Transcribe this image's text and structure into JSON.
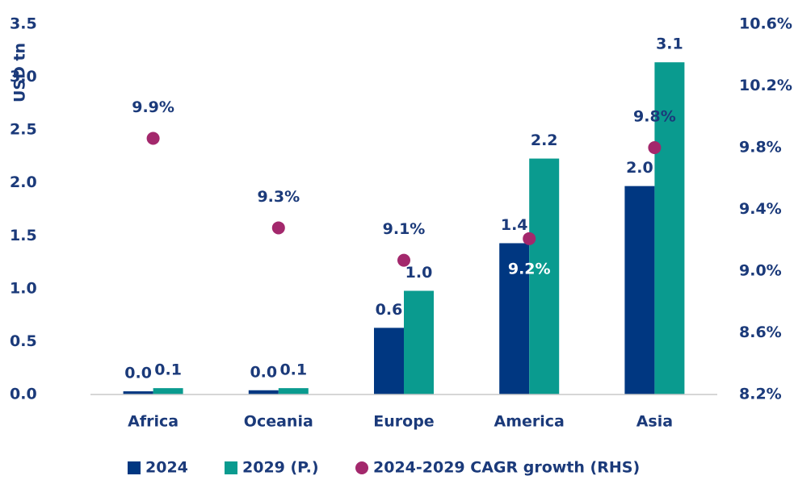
{
  "chart_data": {
    "type": "bar",
    "y_label": "USD tn",
    "categories": [
      "Africa",
      "Oceania",
      "Europe",
      "America",
      "Asia"
    ],
    "series": [
      {
        "name": "2024",
        "type": "bar",
        "color": "#003781",
        "values": [
          0.03,
          0.04,
          0.63,
          1.43,
          1.97
        ],
        "value_labels": [
          "0.0",
          "0.0",
          "0.6",
          "1.4",
          "2.0"
        ]
      },
      {
        "name": "2029 (P.)",
        "type": "bar",
        "color": "#0a9b8f",
        "values": [
          0.06,
          0.06,
          0.98,
          2.23,
          3.14
        ],
        "value_labels": [
          "0.1",
          "0.1",
          "1.0",
          "2.2",
          "3.1"
        ]
      },
      {
        "name": "2024-2029 CAGR growth (RHS)",
        "type": "scatter",
        "axis": "y2",
        "color": "#a3286c",
        "values": [
          9.86,
          9.28,
          9.07,
          9.21,
          9.8
        ],
        "value_labels": [
          "9.9%",
          "9.3%",
          "9.1%",
          "9.2%",
          "9.8%"
        ]
      }
    ],
    "ylim": [
      0,
      3.5
    ],
    "yticks": [
      {
        "value": 0,
        "label": "0.0"
      },
      0.5,
      {
        "value": 1,
        "label": "1.0"
      },
      1.5,
      {
        "value": 2,
        "label": "2.0"
      },
      2.5,
      {
        "value": 3,
        "label": "3.0"
      },
      3.5
    ],
    "y2lim": [
      8.2,
      10.6
    ],
    "y2ticks": [
      {
        "value": 8.2,
        "label": "8.2%"
      },
      {
        "value": 8.6,
        "label": "8.6%"
      },
      {
        "value": 9.0,
        "label": "9.0%"
      },
      {
        "value": 9.4,
        "label": "9.4%"
      },
      {
        "value": 9.8,
        "label": "9.8%"
      },
      {
        "value": 10.2,
        "label": "10.2%"
      },
      {
        "value": 10.6,
        "label": "10.6%"
      }
    ],
    "legend": "bottom"
  }
}
